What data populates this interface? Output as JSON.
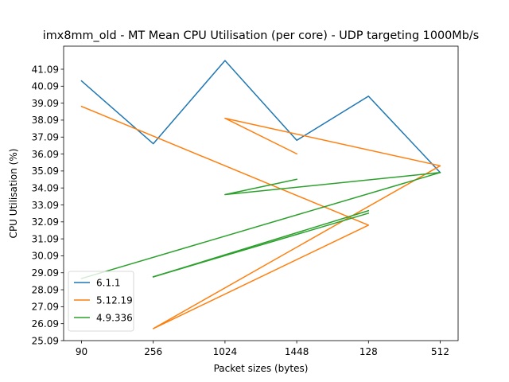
{
  "chart_data": {
    "type": "line",
    "title": "imx8mm_old - MT Mean CPU Utilisation (per core) - UDP targeting 1000Mb/s",
    "xlabel": "Packet sizes (bytes)",
    "ylabel": "CPU Utilisation (%)",
    "categories": [
      "90",
      "256",
      "1024",
      "1448",
      "128",
      "512"
    ],
    "yticks": [
      25.09,
      26.09,
      27.09,
      28.09,
      29.09,
      30.09,
      31.09,
      32.09,
      33.09,
      34.09,
      35.09,
      36.09,
      37.09,
      38.09,
      39.09,
      40.09,
      41.09
    ],
    "ylim": [
      25.09,
      42.45
    ],
    "grid": false,
    "legend_position": "bottom-left",
    "series": [
      {
        "name": "6.1.1",
        "color": "#1f77b4",
        "points": [
          [
            "90",
            40.4
          ],
          [
            "256",
            36.7
          ],
          [
            "1024",
            41.6
          ],
          [
            "1448",
            36.9
          ],
          [
            "128",
            39.5
          ],
          [
            "512",
            35.0
          ]
        ]
      },
      {
        "name": "5.12.19",
        "color": "#ff7f0e",
        "points": [
          [
            "90",
            38.9
          ],
          [
            "128",
            31.9
          ],
          [
            "256",
            25.8
          ],
          [
            "512",
            35.4
          ],
          [
            "1024",
            38.2
          ],
          [
            "1448",
            36.1
          ]
        ]
      },
      {
        "name": "4.9.336",
        "color": "#2ca02c",
        "points": [
          [
            "90",
            28.75
          ],
          [
            "512",
            35.0
          ],
          [
            "1024",
            33.7
          ],
          [
            "1448",
            34.6
          ]
        ]
      },
      {
        "name": "",
        "color": "#2ca02c",
        "points": [
          [
            "256",
            28.85
          ],
          [
            "128",
            32.75
          ]
        ]
      },
      {
        "name": "",
        "color": "#2ca02c",
        "points": [
          [
            "256",
            28.85
          ],
          [
            "128",
            32.6
          ]
        ]
      }
    ]
  }
}
